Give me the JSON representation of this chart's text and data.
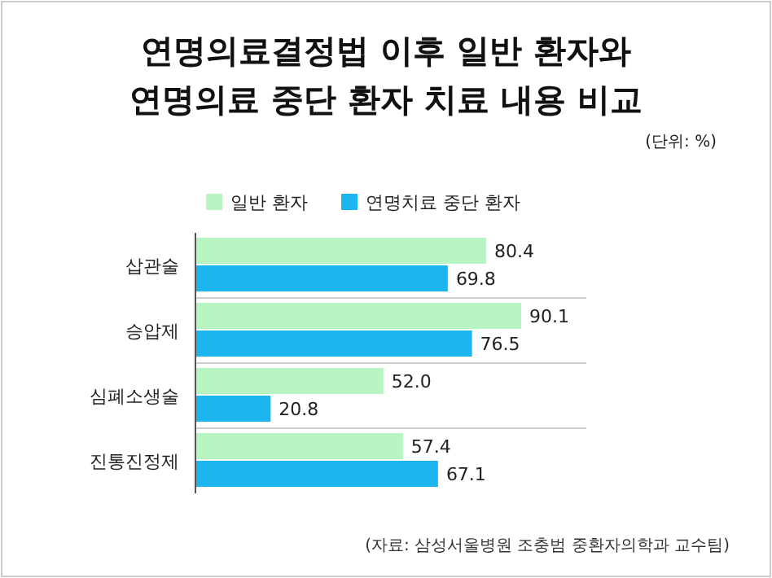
{
  "chart_data": {
    "type": "bar",
    "orientation": "horizontal",
    "title": "연명의료결정법 이후 일반 환자와\n연명의료 중단 환자 치료 내용 비교",
    "subtitle": "(단위: %)",
    "categories": [
      "삽관술",
      "승압제",
      "심폐소생술",
      "진통진정제"
    ],
    "series": [
      {
        "name": "일반 환자",
        "color": "#b9f5c3",
        "values": [
          80.4,
          90.1,
          52.0,
          57.4
        ],
        "value_labels": [
          "80.4",
          "90.1",
          "52.0",
          "57.4"
        ]
      },
      {
        "name": "연명치료 중단 환자",
        "color": "#1cb5ef",
        "values": [
          69.8,
          76.5,
          20.8,
          67.1
        ],
        "value_labels": [
          "69.8",
          "76.5",
          "20.8",
          "67.1"
        ]
      }
    ],
    "legend": "top",
    "annotations": [
      "(자료: 삼성서울병원 조충범 중환자의학과 교수팀)"
    ]
  }
}
